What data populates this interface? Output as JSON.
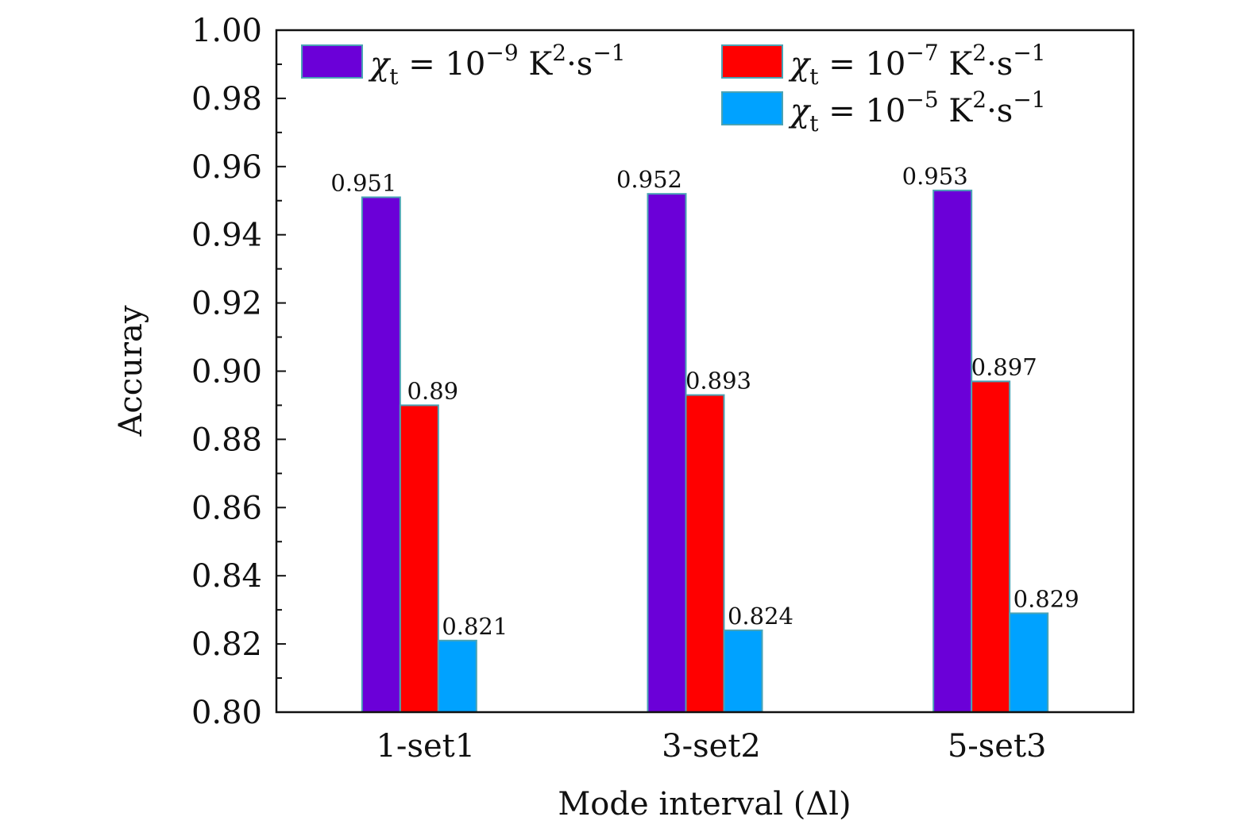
{
  "chart_data": {
    "type": "bar",
    "categories": [
      "1-set1",
      "3-set2",
      "5-set3"
    ],
    "series": [
      {
        "name": "χt = 10−9 K2·s−1",
        "values": [
          0.951,
          0.952,
          0.953
        ],
        "color": "#6b00d8"
      },
      {
        "name": "χt = 10−7 K2·s−1",
        "values": [
          0.89,
          0.893,
          0.897
        ],
        "color": "#ff0000"
      },
      {
        "name": "χt = 10−5 K2·s−1",
        "values": [
          0.821,
          0.824,
          0.829
        ],
        "color": "#00a2ff"
      }
    ],
    "data_labels": [
      [
        "0.951",
        "0.952",
        "0.953"
      ],
      [
        "0.89",
        "0.893",
        "0.897"
      ],
      [
        "0.821",
        "0.824",
        "0.829"
      ]
    ],
    "legend": [
      {
        "base": "χ",
        "sub": "t",
        "eq": " = 10",
        "exp": "−9",
        "unit": " K",
        "unit_exp": "2",
        "dot": "·s",
        "tail_exp": "−1"
      },
      {
        "base": "χ",
        "sub": "t",
        "eq": " = 10",
        "exp": "−7",
        "unit": " K",
        "unit_exp": "2",
        "dot": "·s",
        "tail_exp": "−1"
      },
      {
        "base": "χ",
        "sub": "t",
        "eq": " = 10",
        "exp": "−5",
        "unit": " K",
        "unit_exp": "2",
        "dot": "·s",
        "tail_exp": "−1"
      }
    ],
    "xlabel": "Mode interval (Δl)",
    "ylabel": "Accuray",
    "ylim": [
      0.8,
      1.0
    ],
    "yticks": [
      "0.80",
      "0.82",
      "0.84",
      "0.86",
      "0.88",
      "0.90",
      "0.92",
      "0.94",
      "0.96",
      "0.98",
      "1.00"
    ],
    "bar_border_color": "#4aa3b5",
    "grid": false,
    "legend_position": "top"
  }
}
